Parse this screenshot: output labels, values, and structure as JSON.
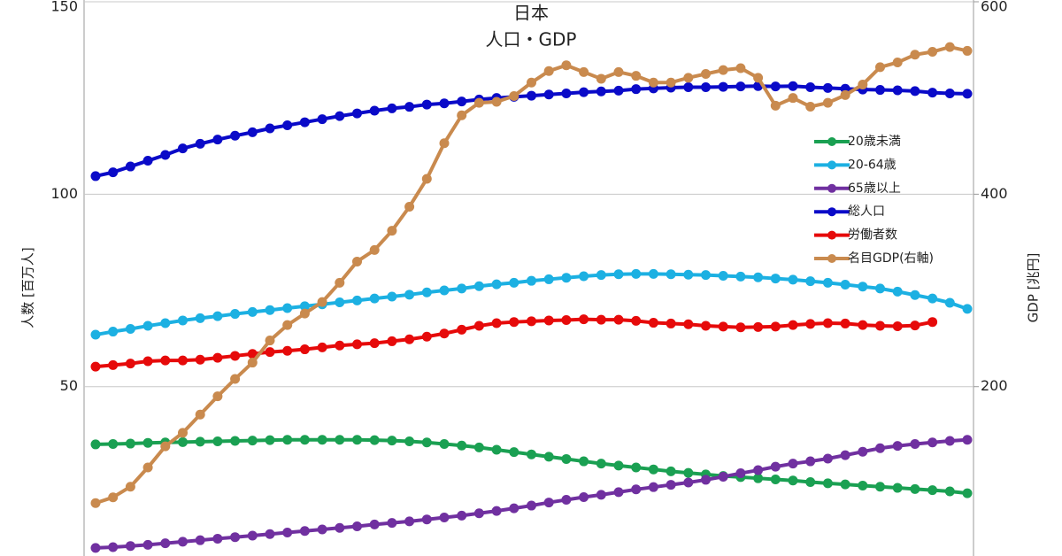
{
  "chart_data": {
    "type": "line",
    "title": "日本",
    "subtitle": "人口・GDP",
    "ylabel": "人数 [百万人]",
    "y2label": "GDP [兆円]",
    "categories": [
      null,
      null,
      null,
      null,
      null,
      null,
      null,
      null,
      null,
      null,
      null,
      null,
      null,
      null,
      null,
      null,
      null,
      null,
      null,
      null,
      null,
      null,
      null,
      null,
      null,
      null,
      null,
      null,
      null,
      null,
      null,
      null,
      null,
      null,
      null,
      null,
      null,
      null,
      null,
      null,
      null,
      null,
      null,
      null,
      null,
      null,
      null,
      null,
      null,
      null,
      null
    ],
    "series": [
      {
        "name": "20歳未満",
        "color": "#1aa052",
        "values": [
          35.0,
          35.1,
          35.2,
          35.4,
          35.5,
          35.6,
          35.7,
          35.8,
          35.9,
          36.0,
          36.1,
          36.2,
          36.2,
          36.2,
          36.2,
          36.2,
          36.1,
          36.0,
          35.8,
          35.5,
          35.1,
          34.7,
          34.2,
          33.6,
          33.0,
          32.4,
          31.8,
          31.2,
          30.6,
          30.0,
          29.5,
          29.0,
          28.5,
          28.0,
          27.6,
          27.2,
          26.8,
          26.5,
          26.2,
          25.9,
          25.6,
          25.2,
          24.9,
          24.6,
          24.3,
          24.0,
          23.7,
          23.4,
          23.1,
          22.8,
          22.3
        ]
      },
      {
        "name": "20-64歳",
        "color": "#1cb0e2",
        "values": [
          63.5,
          64.3,
          65.0,
          65.8,
          66.5,
          67.2,
          67.8,
          68.3,
          68.9,
          69.4,
          69.9,
          70.4,
          70.9,
          71.4,
          71.9,
          72.4,
          72.9,
          73.4,
          73.9,
          74.5,
          75.0,
          75.5,
          76.1,
          76.6,
          77.0,
          77.5,
          77.9,
          78.3,
          78.7,
          79.0,
          79.2,
          79.3,
          79.3,
          79.2,
          79.1,
          79.0,
          78.8,
          78.6,
          78.4,
          78.1,
          77.8,
          77.4,
          77.0,
          76.5,
          76.0,
          75.5,
          74.7,
          73.8,
          72.9,
          71.8,
          70.2
        ]
      },
      {
        "name": "65歳以上",
        "color": "#7030a0",
        "values": [
          8.1,
          8.3,
          8.6,
          8.9,
          9.3,
          9.7,
          10.1,
          10.5,
          10.9,
          11.3,
          11.7,
          12.1,
          12.5,
          12.9,
          13.3,
          13.7,
          14.2,
          14.6,
          15.0,
          15.5,
          16.0,
          16.5,
          17.1,
          17.7,
          18.4,
          19.1,
          19.9,
          20.6,
          21.3,
          21.9,
          22.6,
          23.3,
          23.9,
          24.5,
          25.1,
          25.8,
          26.6,
          27.5,
          28.3,
          29.2,
          30.0,
          30.6,
          31.3,
          32.2,
          33.1,
          34.0,
          34.6,
          35.1,
          35.5,
          35.9,
          36.2
        ]
      },
      {
        "name": "総人口",
        "color": "#0a0ac8",
        "values": [
          104.7,
          105.7,
          107.2,
          108.7,
          110.2,
          111.9,
          113.1,
          114.2,
          115.2,
          116.1,
          117.1,
          117.9,
          118.7,
          119.5,
          120.3,
          121.0,
          121.7,
          122.3,
          122.7,
          123.3,
          123.6,
          124.1,
          124.6,
          125.0,
          125.3,
          125.6,
          125.9,
          126.2,
          126.5,
          126.7,
          126.9,
          127.3,
          127.5,
          127.7,
          127.8,
          127.8,
          127.9,
          128.0,
          128.1,
          128.0,
          128.1,
          127.8,
          127.6,
          127.4,
          127.2,
          127.1,
          127.0,
          126.8,
          126.4,
          126.2,
          126.1
        ]
      },
      {
        "name": "労働者数",
        "color": "#e60a0a",
        "values": [
          55.2,
          55.6,
          56.0,
          56.6,
          56.8,
          56.8,
          57.0,
          57.5,
          58.0,
          58.5,
          59.0,
          59.3,
          59.7,
          60.2,
          60.7,
          61.0,
          61.3,
          61.8,
          62.3,
          63.0,
          63.8,
          64.8,
          65.8,
          66.5,
          66.8,
          67.0,
          67.2,
          67.3,
          67.5,
          67.4,
          67.4,
          67.1,
          66.6,
          66.4,
          66.2,
          65.8,
          65.6,
          65.4,
          65.5,
          65.6,
          66.0,
          66.3,
          66.5,
          66.4,
          66.0,
          65.8,
          65.7,
          65.9,
          66.8,
          null,
          null
        ]
      },
      {
        "name": "名目GDP(右軸)",
        "color": "#c98a4e",
        "axis": "y2",
        "values": [
          79,
          85,
          96,
          116,
          138,
          152,
          171,
          190,
          208,
          225,
          248,
          264,
          276,
          288,
          308,
          330,
          342,
          362,
          387,
          416,
          453,
          482,
          495,
          496,
          502,
          516,
          528,
          534,
          527,
          520,
          527,
          523,
          516,
          516,
          521,
          525,
          529,
          531,
          521,
          492,
          500,
          491,
          495,
          503,
          514,
          532,
          537,
          545,
          548,
          553,
          549
        ]
      }
    ],
    "ylim": [
      6,
      150
    ],
    "yticks": [
      50,
      100,
      150
    ],
    "y2lim": [
      24,
      600
    ],
    "y2ticks": [
      200,
      400,
      600
    ],
    "grid": true,
    "legend": "right"
  }
}
